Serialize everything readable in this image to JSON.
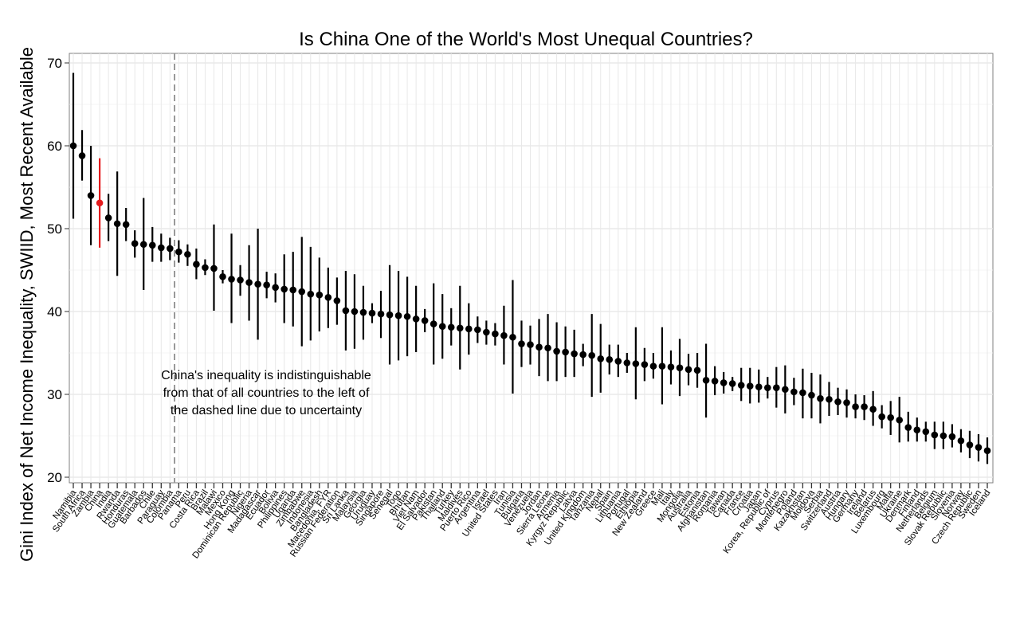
{
  "chart_data": {
    "type": "scatter",
    "subtype": "point-range",
    "title": "Is China One of the World's Most Unequal Countries?",
    "xlabel": "",
    "ylabel": "Gini Index of Net Income Inequality, SWIID, Most Recent Available",
    "ylim": [
      19,
      72
    ],
    "yticks": [
      20,
      30,
      40,
      50,
      60,
      70
    ],
    "grid": true,
    "highlight": {
      "country": "China",
      "color": "#e41a1c"
    },
    "point_color": "#000000",
    "dashed_line_after": "Chile",
    "annotation": [
      "China's inequality is indistinguishable",
      "from that of all countries to the left of",
      "the dashed line due to uncertainty"
    ],
    "points": [
      {
        "country": "Namibia",
        "value": 60.0,
        "low": 51.2,
        "high": 68.8
      },
      {
        "country": "South Africa",
        "value": 58.8,
        "low": 55.8,
        "high": 61.9
      },
      {
        "country": "Zambia",
        "value": 54.0,
        "low": 48.0,
        "high": 60.0
      },
      {
        "country": "China",
        "value": 53.1,
        "low": 47.7,
        "high": 58.5
      },
      {
        "country": "India",
        "value": 51.3,
        "low": 48.5,
        "high": 54.2
      },
      {
        "country": "Rwanda",
        "value": 50.6,
        "low": 44.3,
        "high": 56.9
      },
      {
        "country": "Honduras",
        "value": 50.5,
        "low": 48.5,
        "high": 52.5
      },
      {
        "country": "Guatemala",
        "value": 48.2,
        "low": 46.5,
        "high": 49.8
      },
      {
        "country": "Barbados",
        "value": 48.1,
        "low": 42.6,
        "high": 53.7
      },
      {
        "country": "Chile",
        "value": 48.0,
        "low": 46.0,
        "high": 50.2
      },
      {
        "country": "Paraguay",
        "value": 47.7,
        "low": 46.0,
        "high": 49.4
      },
      {
        "country": "Colombia",
        "value": 47.6,
        "low": 46.2,
        "high": 48.9
      },
      {
        "country": "Panama",
        "value": 47.2,
        "low": 45.9,
        "high": 48.6
      },
      {
        "country": "Peru",
        "value": 46.9,
        "low": 45.5,
        "high": 48.1
      },
      {
        "country": "Costa Rica",
        "value": 45.7,
        "low": 43.9,
        "high": 47.6
      },
      {
        "country": "Brazil",
        "value": 45.3,
        "low": 44.4,
        "high": 46.3
      },
      {
        "country": "Malawi",
        "value": 45.2,
        "low": 40.1,
        "high": 50.5
      },
      {
        "country": "Mexico",
        "value": 44.2,
        "low": 43.4,
        "high": 45.0
      },
      {
        "country": "Hong Kong",
        "value": 43.9,
        "low": 38.6,
        "high": 49.4
      },
      {
        "country": "Dominican Republic",
        "value": 43.8,
        "low": 41.9,
        "high": 45.6
      },
      {
        "country": "Nigeria",
        "value": 43.5,
        "low": 38.9,
        "high": 48.0
      },
      {
        "country": "Madagascar",
        "value": 43.3,
        "low": 36.6,
        "high": 50.0
      },
      {
        "country": "Ecuador",
        "value": 43.2,
        "low": 41.6,
        "high": 44.8
      },
      {
        "country": "Bolivia",
        "value": 42.9,
        "low": 41.1,
        "high": 44.6
      },
      {
        "country": "Philippines",
        "value": 42.7,
        "low": 38.6,
        "high": 46.9
      },
      {
        "country": "Uganda",
        "value": 42.6,
        "low": 38.2,
        "high": 47.2
      },
      {
        "country": "Zimbabwe",
        "value": 42.4,
        "low": 35.8,
        "high": 49.0
      },
      {
        "country": "Indonesia",
        "value": 42.1,
        "low": 36.5,
        "high": 47.8
      },
      {
        "country": "Bangladesh",
        "value": 42.0,
        "low": 37.6,
        "high": 46.5
      },
      {
        "country": "Macedonia, FYR",
        "value": 41.7,
        "low": 38.0,
        "high": 45.3
      },
      {
        "country": "Russian Federation",
        "value": 41.3,
        "low": 38.4,
        "high": 44.1
      },
      {
        "country": "Sri Lanka",
        "value": 40.1,
        "low": 35.3,
        "high": 44.9
      },
      {
        "country": "Malaysia",
        "value": 40.0,
        "low": 35.5,
        "high": 44.5
      },
      {
        "country": "Georgia",
        "value": 39.9,
        "low": 36.6,
        "high": 43.1
      },
      {
        "country": "Uruguay",
        "value": 39.8,
        "low": 38.6,
        "high": 41.0
      },
      {
        "country": "Singapore",
        "value": 39.7,
        "low": 36.8,
        "high": 42.5
      },
      {
        "country": "Senegal",
        "value": 39.6,
        "low": 33.6,
        "high": 45.6
      },
      {
        "country": "Togo",
        "value": 39.5,
        "low": 34.1,
        "high": 44.9
      },
      {
        "country": "Bhutan",
        "value": 39.4,
        "low": 34.6,
        "high": 44.2
      },
      {
        "country": "Viet Nam",
        "value": 39.1,
        "low": 35.1,
        "high": 43.1
      },
      {
        "country": "El Salvador",
        "value": 38.9,
        "low": 37.5,
        "high": 40.3
      },
      {
        "country": "Pakistan",
        "value": 38.5,
        "low": 33.6,
        "high": 43.4
      },
      {
        "country": "Thailand",
        "value": 38.2,
        "low": 34.3,
        "high": 42.1
      },
      {
        "country": "Turkey",
        "value": 38.1,
        "low": 35.9,
        "high": 40.4
      },
      {
        "country": "Maldives",
        "value": 38.0,
        "low": 33.0,
        "high": 43.1
      },
      {
        "country": "Puerto Rico",
        "value": 37.9,
        "low": 34.8,
        "high": 41.0
      },
      {
        "country": "Argentina",
        "value": 37.8,
        "low": 36.2,
        "high": 39.4
      },
      {
        "country": "Israel",
        "value": 37.5,
        "low": 36.0,
        "high": 38.9
      },
      {
        "country": "United States",
        "value": 37.3,
        "low": 35.9,
        "high": 38.6
      },
      {
        "country": "Iran",
        "value": 37.1,
        "low": 33.6,
        "high": 40.7
      },
      {
        "country": "Tunisia",
        "value": 36.9,
        "low": 30.1,
        "high": 43.8
      },
      {
        "country": "Bulgaria",
        "value": 36.1,
        "low": 33.3,
        "high": 38.9
      },
      {
        "country": "Venezuela",
        "value": 36.0,
        "low": 33.6,
        "high": 38.3
      },
      {
        "country": "Jordan",
        "value": 35.7,
        "low": 32.2,
        "high": 39.1
      },
      {
        "country": "Sierra Leone",
        "value": 35.6,
        "low": 31.6,
        "high": 39.7
      },
      {
        "country": "Armenia",
        "value": 35.2,
        "low": 31.6,
        "high": 38.7
      },
      {
        "country": "Kyrgyz Republic",
        "value": 35.1,
        "low": 32.1,
        "high": 38.2
      },
      {
        "country": "Latvia",
        "value": 34.9,
        "low": 32.1,
        "high": 37.8
      },
      {
        "country": "United Kingdom",
        "value": 34.8,
        "low": 33.4,
        "high": 36.1
      },
      {
        "country": "Tanzania",
        "value": 34.7,
        "low": 29.7,
        "high": 39.7
      },
      {
        "country": "Nepal",
        "value": 34.3,
        "low": 30.2,
        "high": 38.5
      },
      {
        "country": "Spain",
        "value": 34.2,
        "low": 32.4,
        "high": 36.0
      },
      {
        "country": "Lithuania",
        "value": 34.0,
        "low": 32.1,
        "high": 36.0
      },
      {
        "country": "Portugal",
        "value": 33.8,
        "low": 32.6,
        "high": 35.0
      },
      {
        "country": "Ethiopia",
        "value": 33.7,
        "low": 29.4,
        "high": 38.1
      },
      {
        "country": "New Zealand",
        "value": 33.6,
        "low": 31.6,
        "high": 35.6
      },
      {
        "country": "Greece",
        "value": 33.4,
        "low": 31.9,
        "high": 35.0
      },
      {
        "country": "Mali",
        "value": 33.4,
        "low": 28.8,
        "high": 38.1
      },
      {
        "country": "Italy",
        "value": 33.3,
        "low": 31.2,
        "high": 35.3
      },
      {
        "country": "Mongolia",
        "value": 33.2,
        "low": 29.8,
        "high": 36.7
      },
      {
        "country": "Australia",
        "value": 33.0,
        "low": 31.1,
        "high": 34.9
      },
      {
        "country": "Estonia",
        "value": 32.9,
        "low": 30.8,
        "high": 35.0
      },
      {
        "country": "Afghanistan",
        "value": 31.7,
        "low": 27.2,
        "high": 36.1
      },
      {
        "country": "Romania",
        "value": 31.6,
        "low": 29.9,
        "high": 33.4
      },
      {
        "country": "Taiwan",
        "value": 31.4,
        "low": 30.1,
        "high": 32.7
      },
      {
        "country": "Canada",
        "value": 31.3,
        "low": 30.4,
        "high": 32.1
      },
      {
        "country": "France",
        "value": 31.1,
        "low": 29.2,
        "high": 33.2
      },
      {
        "country": "Croatia",
        "value": 31.0,
        "low": 28.9,
        "high": 33.2
      },
      {
        "country": "Japan",
        "value": 30.9,
        "low": 29.0,
        "high": 33.0
      },
      {
        "country": "Korea, Republic of",
        "value": 30.8,
        "low": 29.5,
        "high": 32.1
      },
      {
        "country": "Cyprus",
        "value": 30.8,
        "low": 28.4,
        "high": 33.3
      },
      {
        "country": "Montenegro",
        "value": 30.6,
        "low": 27.7,
        "high": 33.5
      },
      {
        "country": "Poland",
        "value": 30.3,
        "low": 28.7,
        "high": 32.0
      },
      {
        "country": "Kazakhstan",
        "value": 30.2,
        "low": 27.1,
        "high": 33.1
      },
      {
        "country": "Moldova",
        "value": 29.9,
        "low": 27.1,
        "high": 32.6
      },
      {
        "country": "Serbia",
        "value": 29.5,
        "low": 26.5,
        "high": 32.4
      },
      {
        "country": "Switzerland",
        "value": 29.4,
        "low": 27.4,
        "high": 31.5
      },
      {
        "country": "Austria",
        "value": 29.1,
        "low": 27.5,
        "high": 30.8
      },
      {
        "country": "Hungary",
        "value": 29.0,
        "low": 27.2,
        "high": 30.6
      },
      {
        "country": "Germany",
        "value": 28.5,
        "low": 27.1,
        "high": 30.0
      },
      {
        "country": "Ireland",
        "value": 28.5,
        "low": 26.9,
        "high": 29.9
      },
      {
        "country": "Belarus",
        "value": 28.2,
        "low": 26.2,
        "high": 30.4
      },
      {
        "country": "Luxembourg",
        "value": 27.3,
        "low": 25.9,
        "high": 28.7
      },
      {
        "country": "Malta",
        "value": 27.2,
        "low": 25.1,
        "high": 29.2
      },
      {
        "country": "Ukraine",
        "value": 26.9,
        "low": 24.2,
        "high": 29.7
      },
      {
        "country": "Denmark",
        "value": 26.0,
        "low": 24.3,
        "high": 27.9
      },
      {
        "country": "Finland",
        "value": 25.7,
        "low": 24.3,
        "high": 27.2
      },
      {
        "country": "Netherlands",
        "value": 25.5,
        "low": 24.3,
        "high": 26.7
      },
      {
        "country": "Belgium",
        "value": 25.1,
        "low": 23.4,
        "high": 26.7
      },
      {
        "country": "Slovak Republic",
        "value": 25.0,
        "low": 23.4,
        "high": 26.7
      },
      {
        "country": "Slovenia",
        "value": 24.9,
        "low": 23.6,
        "high": 26.4
      },
      {
        "country": "Norway",
        "value": 24.4,
        "low": 23.0,
        "high": 25.8
      },
      {
        "country": "Czech Republic",
        "value": 23.9,
        "low": 22.3,
        "high": 25.6
      },
      {
        "country": "Sweden",
        "value": 23.6,
        "low": 21.9,
        "high": 25.2
      },
      {
        "country": "Iceland",
        "value": 23.2,
        "low": 21.6,
        "high": 24.8
      }
    ]
  }
}
